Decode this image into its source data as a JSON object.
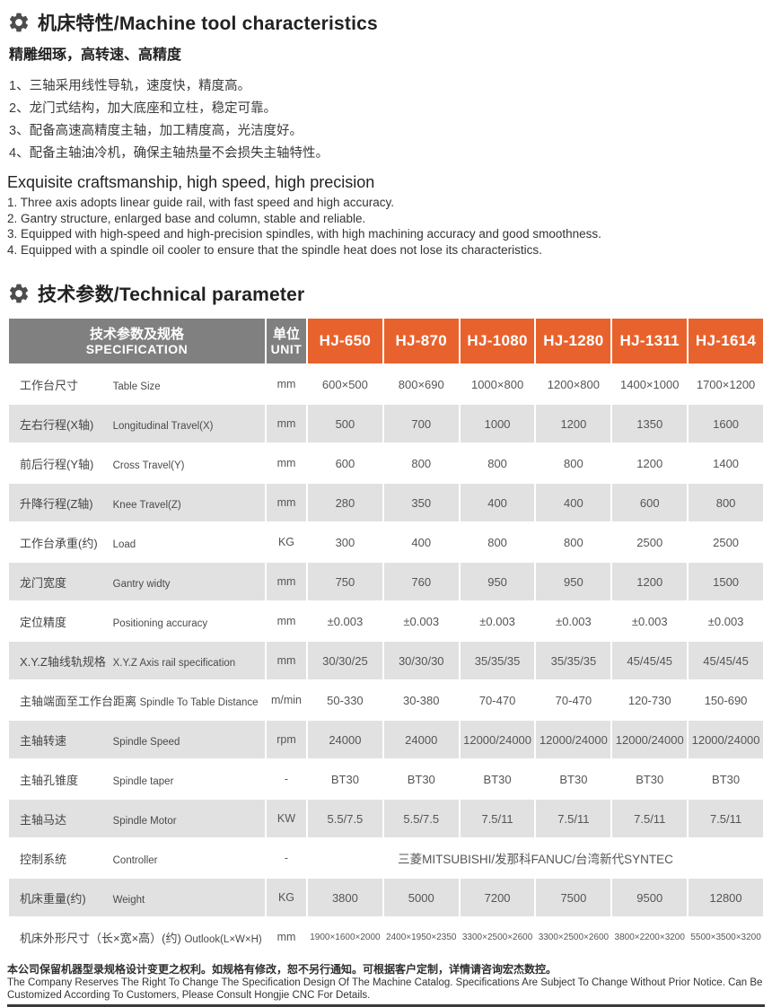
{
  "accent_color": "#E8622D",
  "header_gray": "#808080",
  "zebra_gray": "#E1E1E1",
  "characteristics": {
    "title": "机床特性/Machine tool characteristics",
    "subtitle": "精雕细琢，高转速、高精度",
    "cn_items": [
      "1、三轴采用线性导轨，速度快，精度高。",
      "2、龙门式结构，加大底座和立柱，稳定可靠。",
      "3、配备高速高精度主轴，加工精度高，光洁度好。",
      "4、配备主轴油冷机，确保主轴热量不会损失主轴特性。"
    ],
    "en_title": "Exquisite craftsmanship, high speed, high precision",
    "en_items": [
      "1. Three axis adopts linear guide rail, with fast speed and high accuracy.",
      "2. Gantry structure, enlarged base and column, stable and reliable.",
      "3. Equipped with high-speed and high-precision spindles, with high machining accuracy and good smoothness.",
      "4. Equipped with a spindle oil cooler to ensure that the spindle heat does not lose its characteristics."
    ]
  },
  "parameters_title": "技术参数/Technical parameter",
  "table": {
    "spec_header_cn": "技术参数及规格",
    "spec_header_en": "SPECIFICATION",
    "unit_header_cn": "单位",
    "unit_header_en": "UNIT",
    "models": [
      "HJ-650",
      "HJ-870",
      "HJ-1080",
      "HJ-1280",
      "HJ-1311",
      "HJ-1614"
    ],
    "rows": [
      {
        "cn": "工作台尺寸",
        "en": "Table Size",
        "unit": "mm",
        "values": [
          "600×500",
          "800×690",
          "1000×800",
          "1200×800",
          "1400×1000",
          "1700×1200"
        ]
      },
      {
        "cn": "左右行程(X轴)",
        "en": "Longitudinal Travel(X)",
        "unit": "mm",
        "values": [
          "500",
          "700",
          "1000",
          "1200",
          "1350",
          "1600"
        ]
      },
      {
        "cn": "前后行程(Y轴)",
        "en": "Cross Travel(Y)",
        "unit": "mm",
        "values": [
          "600",
          "800",
          "800",
          "800",
          "1200",
          "1400"
        ]
      },
      {
        "cn": "升降行程(Z轴)",
        "en": "Knee Travel(Z)",
        "unit": "mm",
        "values": [
          "280",
          "350",
          "400",
          "400",
          "600",
          "800"
        ]
      },
      {
        "cn": "工作台承重(约)",
        "en": "Load",
        "unit": "KG",
        "values": [
          "300",
          "400",
          "800",
          "800",
          "2500",
          "2500"
        ]
      },
      {
        "cn": "龙门宽度",
        "en": "Gantry widty",
        "unit": "mm",
        "values": [
          "750",
          "760",
          "950",
          "950",
          "1200",
          "1500"
        ]
      },
      {
        "cn": "定位精度",
        "en": "Positioning accuracy",
        "unit": "mm",
        "values": [
          "±0.003",
          "±0.003",
          "±0.003",
          "±0.003",
          "±0.003",
          "±0.003"
        ]
      },
      {
        "cn": "X.Y.Z轴线轨规格",
        "en": "X.Y.Z Axis rail specification",
        "unit": "mm",
        "values": [
          "30/30/25",
          "30/30/30",
          "35/35/35",
          "35/35/35",
          "45/45/45",
          "45/45/45"
        ]
      },
      {
        "cn": "主轴端面至工作台距离",
        "en": "Spindle To Table Distance",
        "unit": "m/min",
        "values": [
          "50-330",
          "30-380",
          "70-470",
          "70-470",
          "120-730",
          "150-690"
        ]
      },
      {
        "cn": "主轴转速",
        "en": "Spindle Speed",
        "unit": "rpm",
        "values": [
          "24000",
          "24000",
          "12000/24000",
          "12000/24000",
          "12000/24000",
          "12000/24000"
        ]
      },
      {
        "cn": "主轴孔锥度",
        "en": "Spindle taper",
        "unit": "-",
        "values": [
          "BT30",
          "BT30",
          "BT30",
          "BT30",
          "BT30",
          "BT30"
        ]
      },
      {
        "cn": "主轴马达",
        "en": "Spindle Motor",
        "unit": "KW",
        "values": [
          "5.5/7.5",
          "5.5/7.5",
          "7.5/11",
          "7.5/11",
          "7.5/11",
          "7.5/11"
        ]
      },
      {
        "cn": "控制系统",
        "en": "Controller",
        "unit": "-",
        "merged": "三菱MITSUBISHI/发那科FANUC/台湾新代SYNTEC"
      },
      {
        "cn": "机床重量(约)",
        "en": "Weight",
        "unit": "KG",
        "values": [
          "3800",
          "5000",
          "7200",
          "7500",
          "9500",
          "12800"
        ]
      },
      {
        "cn": "机床外形尺寸（长×宽×高）(约)",
        "en": "Outlook(L×W×H)",
        "unit": "mm",
        "values": [
          "1900×1600×2000",
          "2400×1950×2350",
          "3300×2500×2600",
          "3300×2500×2600",
          "3800×2200×3200",
          "5500×3500×3200"
        ]
      }
    ]
  },
  "footer": {
    "cn": "本公司保留机器型录规格设计变更之权利。如规格有修改，恕不另行通知。可根据客户定制，详情请咨询宏杰数控。",
    "en": "The Company Reserves The Right To Change The Specification Design Of The Machine Catalog. Specifications Are Subject To Change Without Prior Notice. Can Be Customized According To Customers, Please Consult Hongjie CNC For Details."
  }
}
